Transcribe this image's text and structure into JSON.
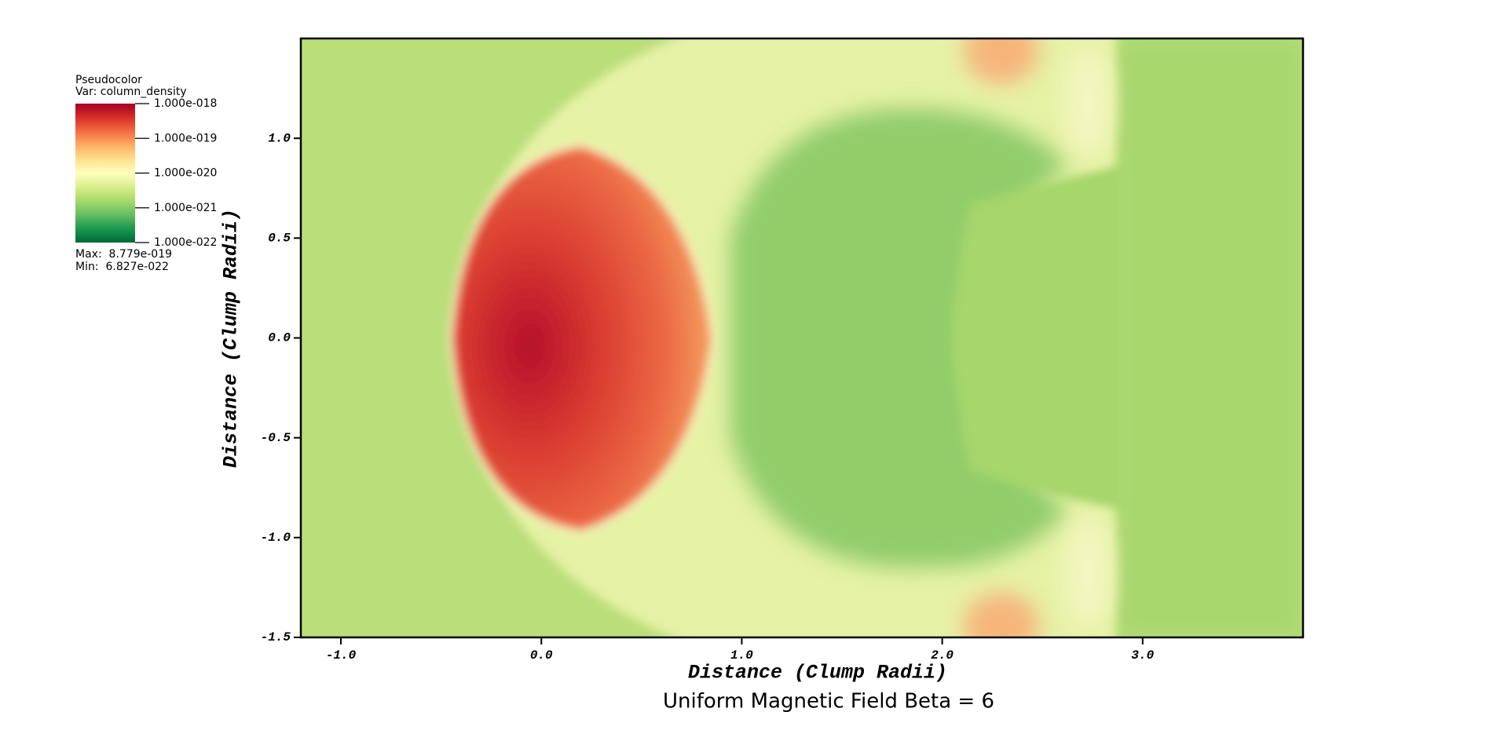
{
  "chart_data": {
    "type": "pseudocolor",
    "title": "Uniform Magnetic Field Beta = 6",
    "x_label": "Distance (Clump Radii)",
    "y_label": "Distance (Clump Radii)",
    "xlim": [
      -1.2,
      3.8
    ],
    "ylim": [
      -1.5,
      1.5
    ],
    "xticks": [
      {
        "value": -1,
        "label": "-1.0"
      },
      {
        "value": 0,
        "label": "0.0"
      },
      {
        "value": 1,
        "label": "1.0"
      },
      {
        "value": 2,
        "label": "2.0"
      },
      {
        "value": 3,
        "label": "3.0"
      }
    ],
    "yticks": [
      -1.5,
      {
        "value": -1,
        "label": "-1.0"
      },
      -0.5,
      {
        "value": 0,
        "label": "0.0"
      },
      0.5,
      {
        "value": 1,
        "label": "1.0"
      }
    ],
    "legend": {
      "title": "Pseudocolor",
      "variable": "Var: column_density",
      "ticks": [
        {
          "value": 1e-18,
          "label": "1.000e-018"
        },
        {
          "value": 1e-19,
          "label": "1.000e-019"
        },
        {
          "value": 1e-20,
          "label": "1.000e-020"
        },
        {
          "value": 1e-21,
          "label": "1.000e-021"
        },
        {
          "value": 1e-22,
          "label": "1.000e-022"
        }
      ],
      "max": "Max:  8.779e-019",
      "min": "Min:  6.827e-022",
      "colormap": [
        "#a50026",
        "#d73027",
        "#f46d43",
        "#fdae61",
        "#fee08b",
        "#ffffbf",
        "#d9ef8b",
        "#a6d96a",
        "#66bd63",
        "#1a9850",
        "#006837"
      ]
    }
  }
}
